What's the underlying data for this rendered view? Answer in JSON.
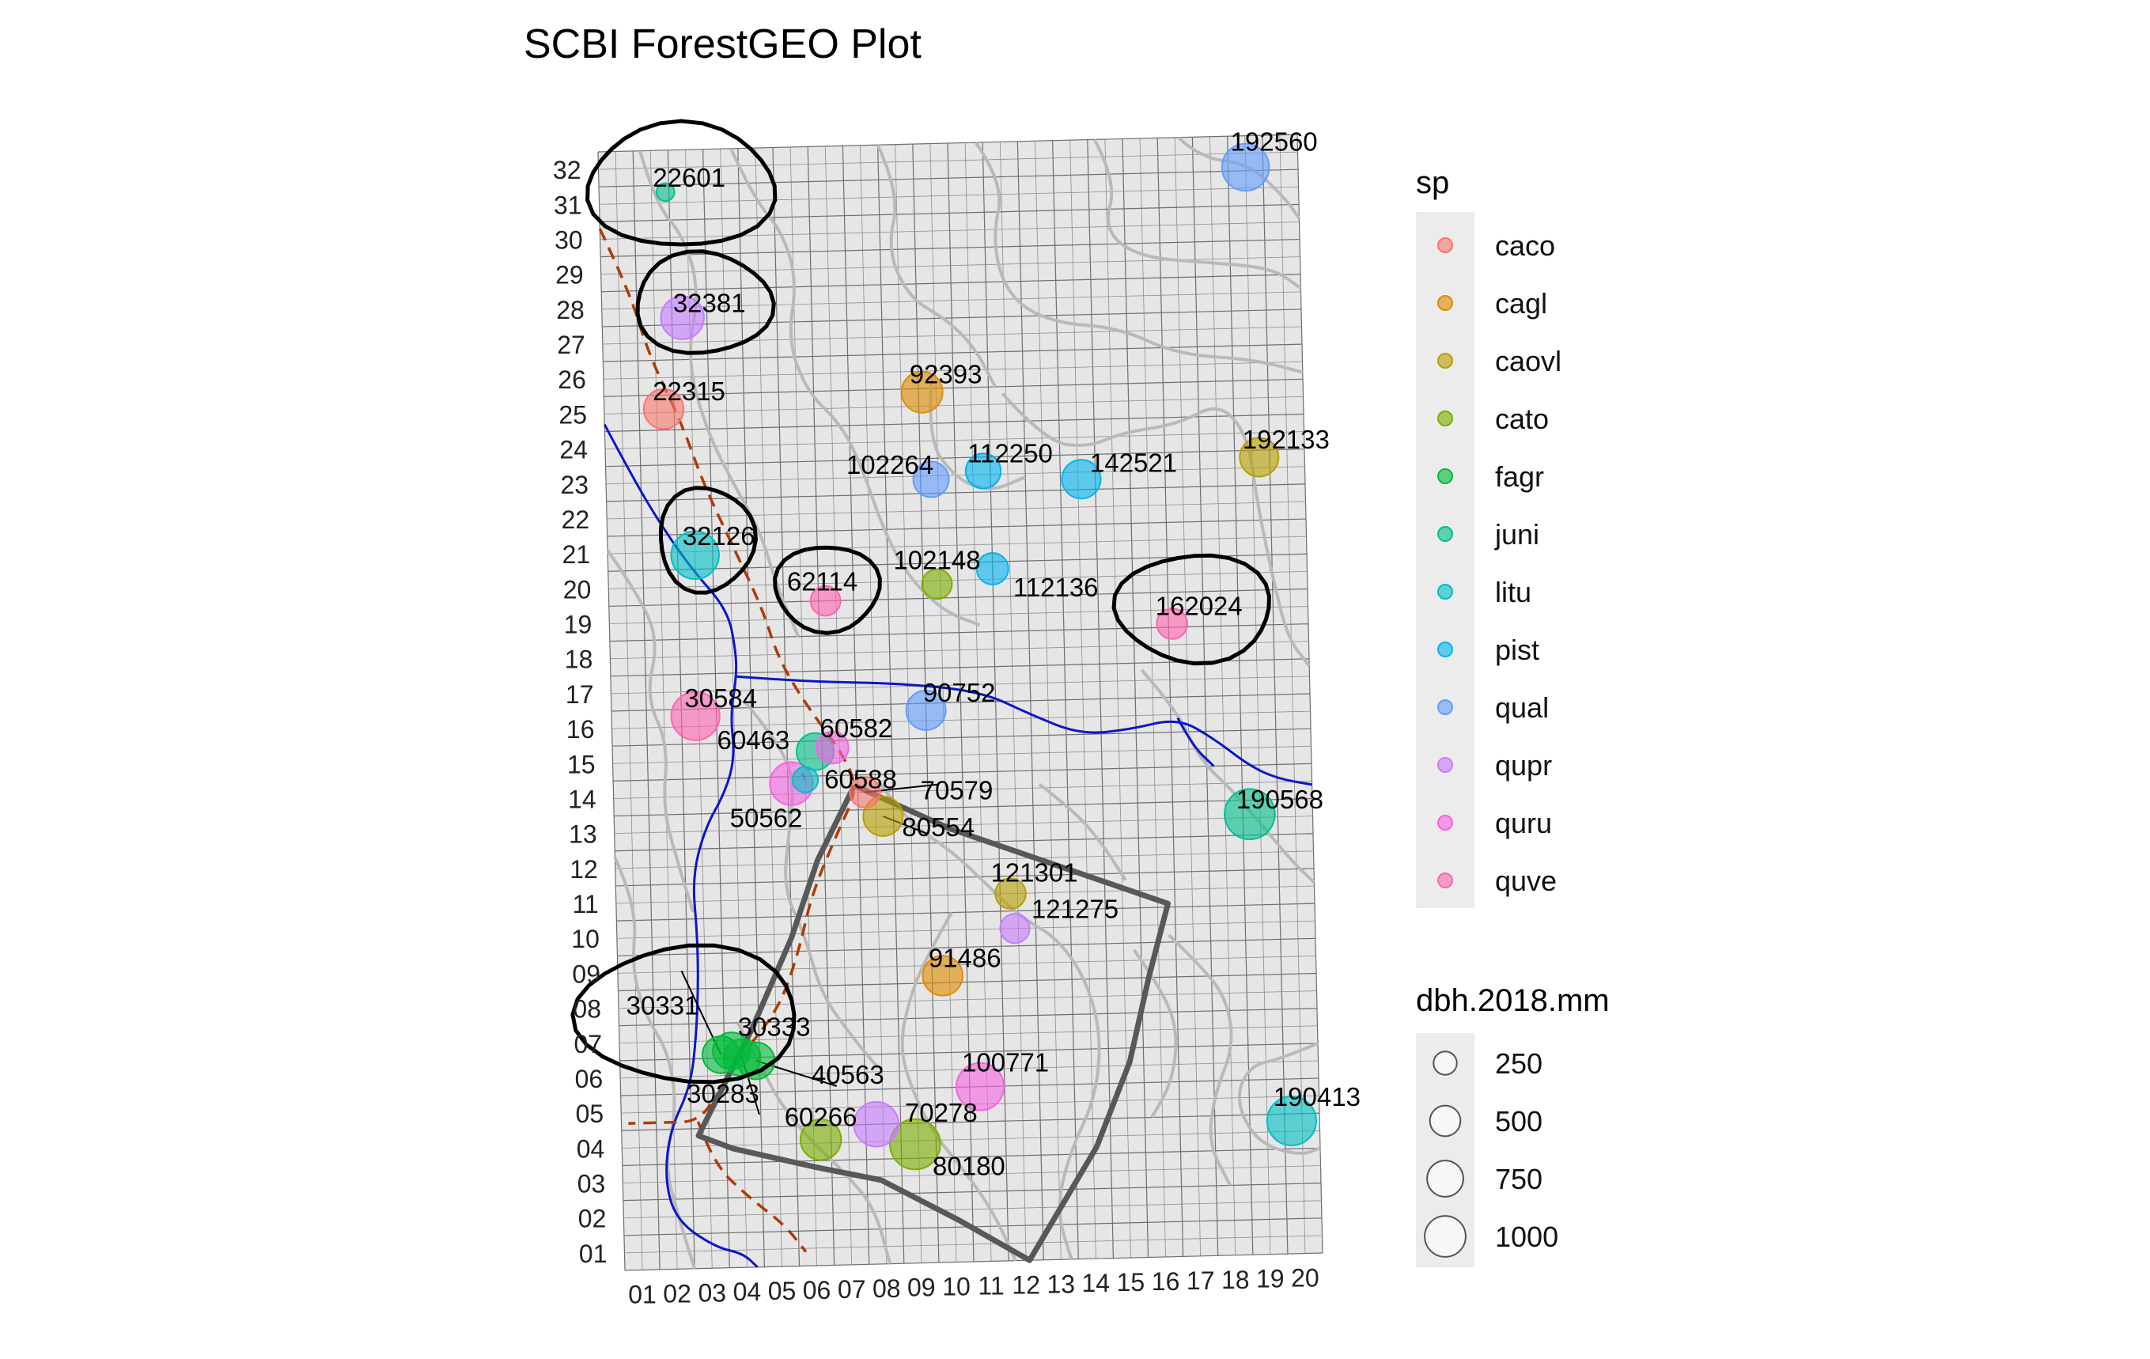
{
  "chart_data": {
    "type": "scatter",
    "title": "SCBI ForestGEO Plot",
    "x_ticks": [
      "01",
      "02",
      "03",
      "04",
      "05",
      "06",
      "07",
      "08",
      "09",
      "10",
      "11",
      "12",
      "13",
      "14",
      "15",
      "16",
      "17",
      "18",
      "19",
      "20"
    ],
    "y_ticks": [
      "01",
      "02",
      "03",
      "04",
      "05",
      "06",
      "07",
      "08",
      "09",
      "10",
      "11",
      "12",
      "13",
      "14",
      "15",
      "16",
      "17",
      "18",
      "19",
      "20",
      "21",
      "22",
      "23",
      "24",
      "25",
      "26",
      "27",
      "28",
      "29",
      "30",
      "31",
      "32"
    ],
    "xlim": [
      0,
      20
    ],
    "ylim": [
      0,
      32
    ],
    "grid": true,
    "legend_sp": {
      "title": "sp",
      "placement": "right",
      "entries": [
        {
          "label": "caco",
          "color": "#F8766D"
        },
        {
          "label": "cagl",
          "color": "#DE8C00"
        },
        {
          "label": "caovl",
          "color": "#B79F00"
        },
        {
          "label": "cato",
          "color": "#7CAE00"
        },
        {
          "label": "fagr",
          "color": "#00BA38"
        },
        {
          "label": "juni",
          "color": "#00C08B"
        },
        {
          "label": "litu",
          "color": "#00BFC4"
        },
        {
          "label": "pist",
          "color": "#00B4F0"
        },
        {
          "label": "qual",
          "color": "#619CFF"
        },
        {
          "label": "qupr",
          "color": "#C77CFF"
        },
        {
          "label": "quru",
          "color": "#F564E3"
        },
        {
          "label": "quve",
          "color": "#FF64B0"
        }
      ]
    },
    "legend_size": {
      "title": "dbh.2018.mm",
      "placement": "right",
      "entries": [
        {
          "label": "250",
          "value": 250
        },
        {
          "label": "500",
          "value": 500
        },
        {
          "label": "750",
          "value": 750
        },
        {
          "label": "1000",
          "value": 1000
        }
      ]
    },
    "points": [
      {
        "tag": "22601",
        "sp": "juni",
        "x": 1.9,
        "y": 30.8,
        "dbh": 40
      },
      {
        "tag": "32381",
        "sp": "qupr",
        "x": 2.3,
        "y": 27.2,
        "dbh": 480
      },
      {
        "tag": "22315",
        "sp": "caco",
        "x": 1.7,
        "y": 24.6,
        "dbh": 400
      },
      {
        "tag": "92393",
        "sp": "cagl",
        "x": 9.1,
        "y": 24.9,
        "dbh": 430
      },
      {
        "tag": "192560",
        "sp": "qual",
        "x": 18.5,
        "y": 31.1,
        "dbh": 600
      },
      {
        "tag": "192133",
        "sp": "caovl",
        "x": 18.7,
        "y": 22.8,
        "dbh": 370
      },
      {
        "tag": "102264",
        "sp": "qual",
        "x": 9.3,
        "y": 22.4,
        "dbh": 300
      },
      {
        "tag": "112250",
        "sp": "pist",
        "x": 10.8,
        "y": 22.6,
        "dbh": 290
      },
      {
        "tag": "142521",
        "sp": "pist",
        "x": 13.6,
        "y": 22.3,
        "dbh": 370
      },
      {
        "tag": "32126",
        "sp": "litu",
        "x": 2.5,
        "y": 20.4,
        "dbh": 620
      },
      {
        "tag": "62114",
        "sp": "quve",
        "x": 6.2,
        "y": 19.0,
        "dbh": 190
      },
      {
        "tag": "102148",
        "sp": "cato",
        "x": 9.4,
        "y": 19.4,
        "dbh": 190
      },
      {
        "tag": "112136",
        "sp": "pist",
        "x": 11.0,
        "y": 19.8,
        "dbh": 220
      },
      {
        "tag": "162024",
        "sp": "quve",
        "x": 16.1,
        "y": 18.1,
        "dbh": 200
      },
      {
        "tag": "30584",
        "sp": "quve",
        "x": 2.4,
        "y": 15.8,
        "dbh": 640
      },
      {
        "tag": "90752",
        "sp": "qual",
        "x": 9.0,
        "y": 15.8,
        "dbh": 390
      },
      {
        "tag": "60582",
        "sp": "quru",
        "x": 6.3,
        "y": 14.8,
        "dbh": 230
      },
      {
        "tag": "60463",
        "sp": "juni",
        "x": 5.8,
        "y": 14.7,
        "dbh": 330
      },
      {
        "tag": "60588",
        "sp": "litu",
        "x": 5.5,
        "y": 13.9,
        "dbh": 120
      },
      {
        "tag": "50562",
        "sp": "quru",
        "x": 5.1,
        "y": 13.8,
        "dbh": 480
      },
      {
        "tag": "70579",
        "sp": "caco",
        "x": 7.2,
        "y": 13.5,
        "dbh": 200
      },
      {
        "tag": "80554",
        "sp": "caovl",
        "x": 7.7,
        "y": 12.8,
        "dbh": 390
      },
      {
        "tag": "190568",
        "sp": "juni",
        "x": 18.2,
        "y": 12.6,
        "dbh": 700
      },
      {
        "tag": "121301",
        "sp": "caovl",
        "x": 11.3,
        "y": 10.5,
        "dbh": 200
      },
      {
        "tag": "121275",
        "sp": "qupr",
        "x": 11.4,
        "y": 9.5,
        "dbh": 180
      },
      {
        "tag": "91486",
        "sp": "cagl",
        "x": 9.3,
        "y": 8.2,
        "dbh": 400
      },
      {
        "tag": "30331",
        "sp": "fagr",
        "x": 2.9,
        "y": 6.1,
        "dbh": 330
      },
      {
        "tag": "30333",
        "sp": "fagr",
        "x": 3.2,
        "y": 6.2,
        "dbh": 330
      },
      {
        "tag": "30283",
        "sp": "fagr",
        "x": 3.5,
        "y": 6.0,
        "dbh": 330
      },
      {
        "tag": "40563",
        "sp": "fagr",
        "x": 3.9,
        "y": 5.9,
        "dbh": 330
      },
      {
        "tag": "100771",
        "sp": "quru",
        "x": 10.3,
        "y": 5.0,
        "dbh": 610
      },
      {
        "tag": "60266",
        "sp": "cato",
        "x": 5.7,
        "y": 3.6,
        "dbh": 420
      },
      {
        "tag": "70278",
        "sp": "qupr",
        "x": 7.3,
        "y": 4.0,
        "dbh": 530
      },
      {
        "tag": "80180",
        "sp": "cato",
        "x": 8.4,
        "y": 3.4,
        "dbh": 700
      },
      {
        "tag": "190413",
        "sp": "litu",
        "x": 19.2,
        "y": 3.8,
        "dbh": 660
      }
    ]
  }
}
